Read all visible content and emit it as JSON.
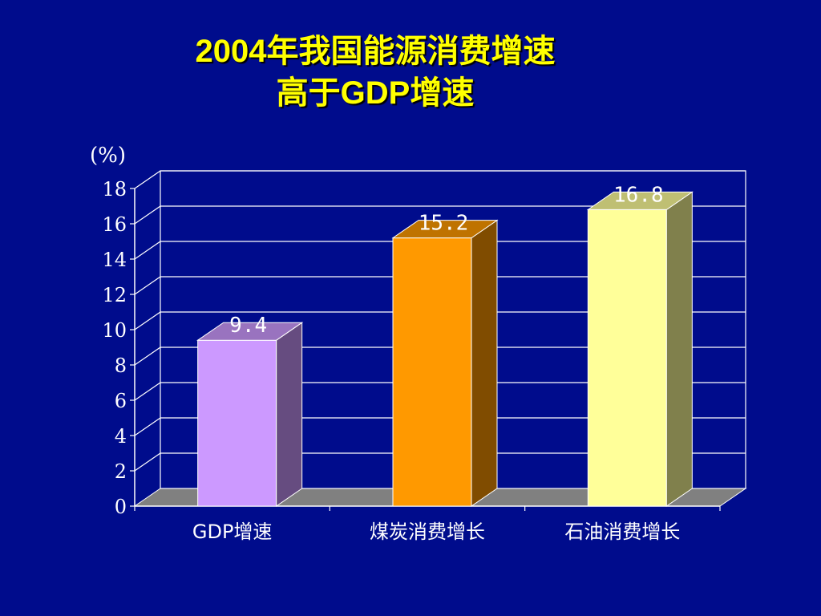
{
  "slide": {
    "title_line1": "2004年我国能源消费增速",
    "title_line2": "高于GDP增速"
  },
  "chart_data": {
    "type": "bar",
    "title": "2004年我国能源消费增速 高于GDP增速",
    "ylabel": "(%)",
    "xlabel": "",
    "ylim": [
      0,
      18
    ],
    "yticks": [
      0,
      2,
      4,
      6,
      8,
      10,
      12,
      14,
      16,
      18
    ],
    "categories": [
      "GDP增速",
      "煤炭消费增长",
      "石油消费增长"
    ],
    "values": [
      9.4,
      15.2,
      16.8
    ],
    "data_labels": [
      "9.4",
      "15.2",
      "16.8"
    ],
    "grid": true,
    "style": "3d-column",
    "colors": {
      "background": "#000c8c",
      "floor": "#808080",
      "bars": [
        "#cc99ff",
        "#ff9900",
        "#ffff99"
      ],
      "bar_sides": [
        "#664c80",
        "#804c00",
        "#80804c"
      ],
      "bar_tops": [
        "#9973bf",
        "#bf7300",
        "#bfbf73"
      ],
      "text": "#ffffff",
      "title": "#ffff00"
    }
  }
}
